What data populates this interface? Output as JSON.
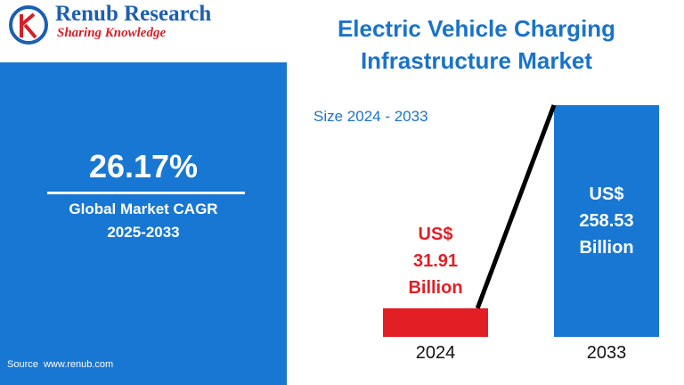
{
  "brand": "Renub Research",
  "tagline": "Sharing Knowledge",
  "highlight": {
    "figure": "26.17%",
    "label": "Global Market CAGR",
    "period": "2025-2033"
  },
  "source": "Source  www.renub.com",
  "chart_data": {
    "type": "bar",
    "title": "Electric Vehicle Charging Infrastructure Market",
    "subtitle": "Size 2024 - 2033",
    "categories": [
      "2024",
      "2033"
    ],
    "values": [
      31.91,
      258.53
    ],
    "value_labels": [
      "US$ 31.91 Billion",
      "US$ 258.53 Billion"
    ],
    "colors": [
      "#e31e24",
      "#1877d2"
    ]
  }
}
